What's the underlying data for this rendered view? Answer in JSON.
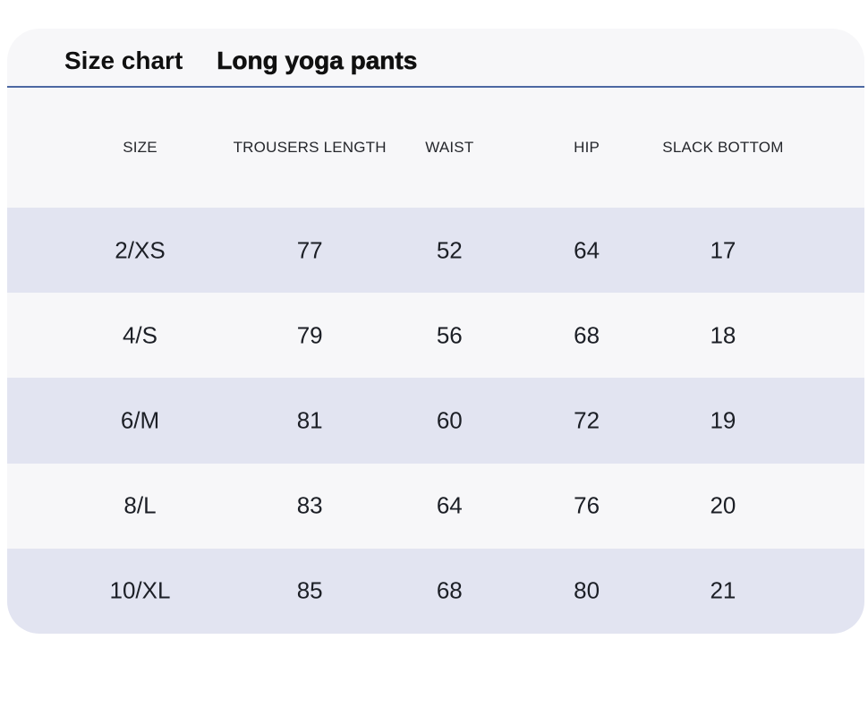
{
  "card": {
    "title": "Size chart",
    "product_name": "Long yoga pants"
  },
  "table": {
    "columns": [
      "SIZE",
      "TROUSERS LENGTH",
      "WAIST",
      "HIP",
      "SLACK BOTTOM"
    ],
    "rows": [
      {
        "size": "2/XS",
        "trousers_length": "77",
        "waist": "52",
        "hip": "64",
        "slack_bottom": "17"
      },
      {
        "size": "4/S",
        "trousers_length": "79",
        "waist": "56",
        "hip": "68",
        "slack_bottom": "18"
      },
      {
        "size": "6/M",
        "trousers_length": "81",
        "waist": "60",
        "hip": "72",
        "slack_bottom": "19"
      },
      {
        "size": "8/L",
        "trousers_length": "83",
        "waist": "64",
        "hip": "76",
        "slack_bottom": "20"
      },
      {
        "size": "10/XL",
        "trousers_length": "85",
        "waist": "68",
        "hip": "80",
        "slack_bottom": "21"
      }
    ]
  },
  "colors": {
    "accent_line": "#4c68a2",
    "shaded_row": "#e2e4f1",
    "card_background": "#f7f7f9",
    "text": "#1c1f26"
  }
}
